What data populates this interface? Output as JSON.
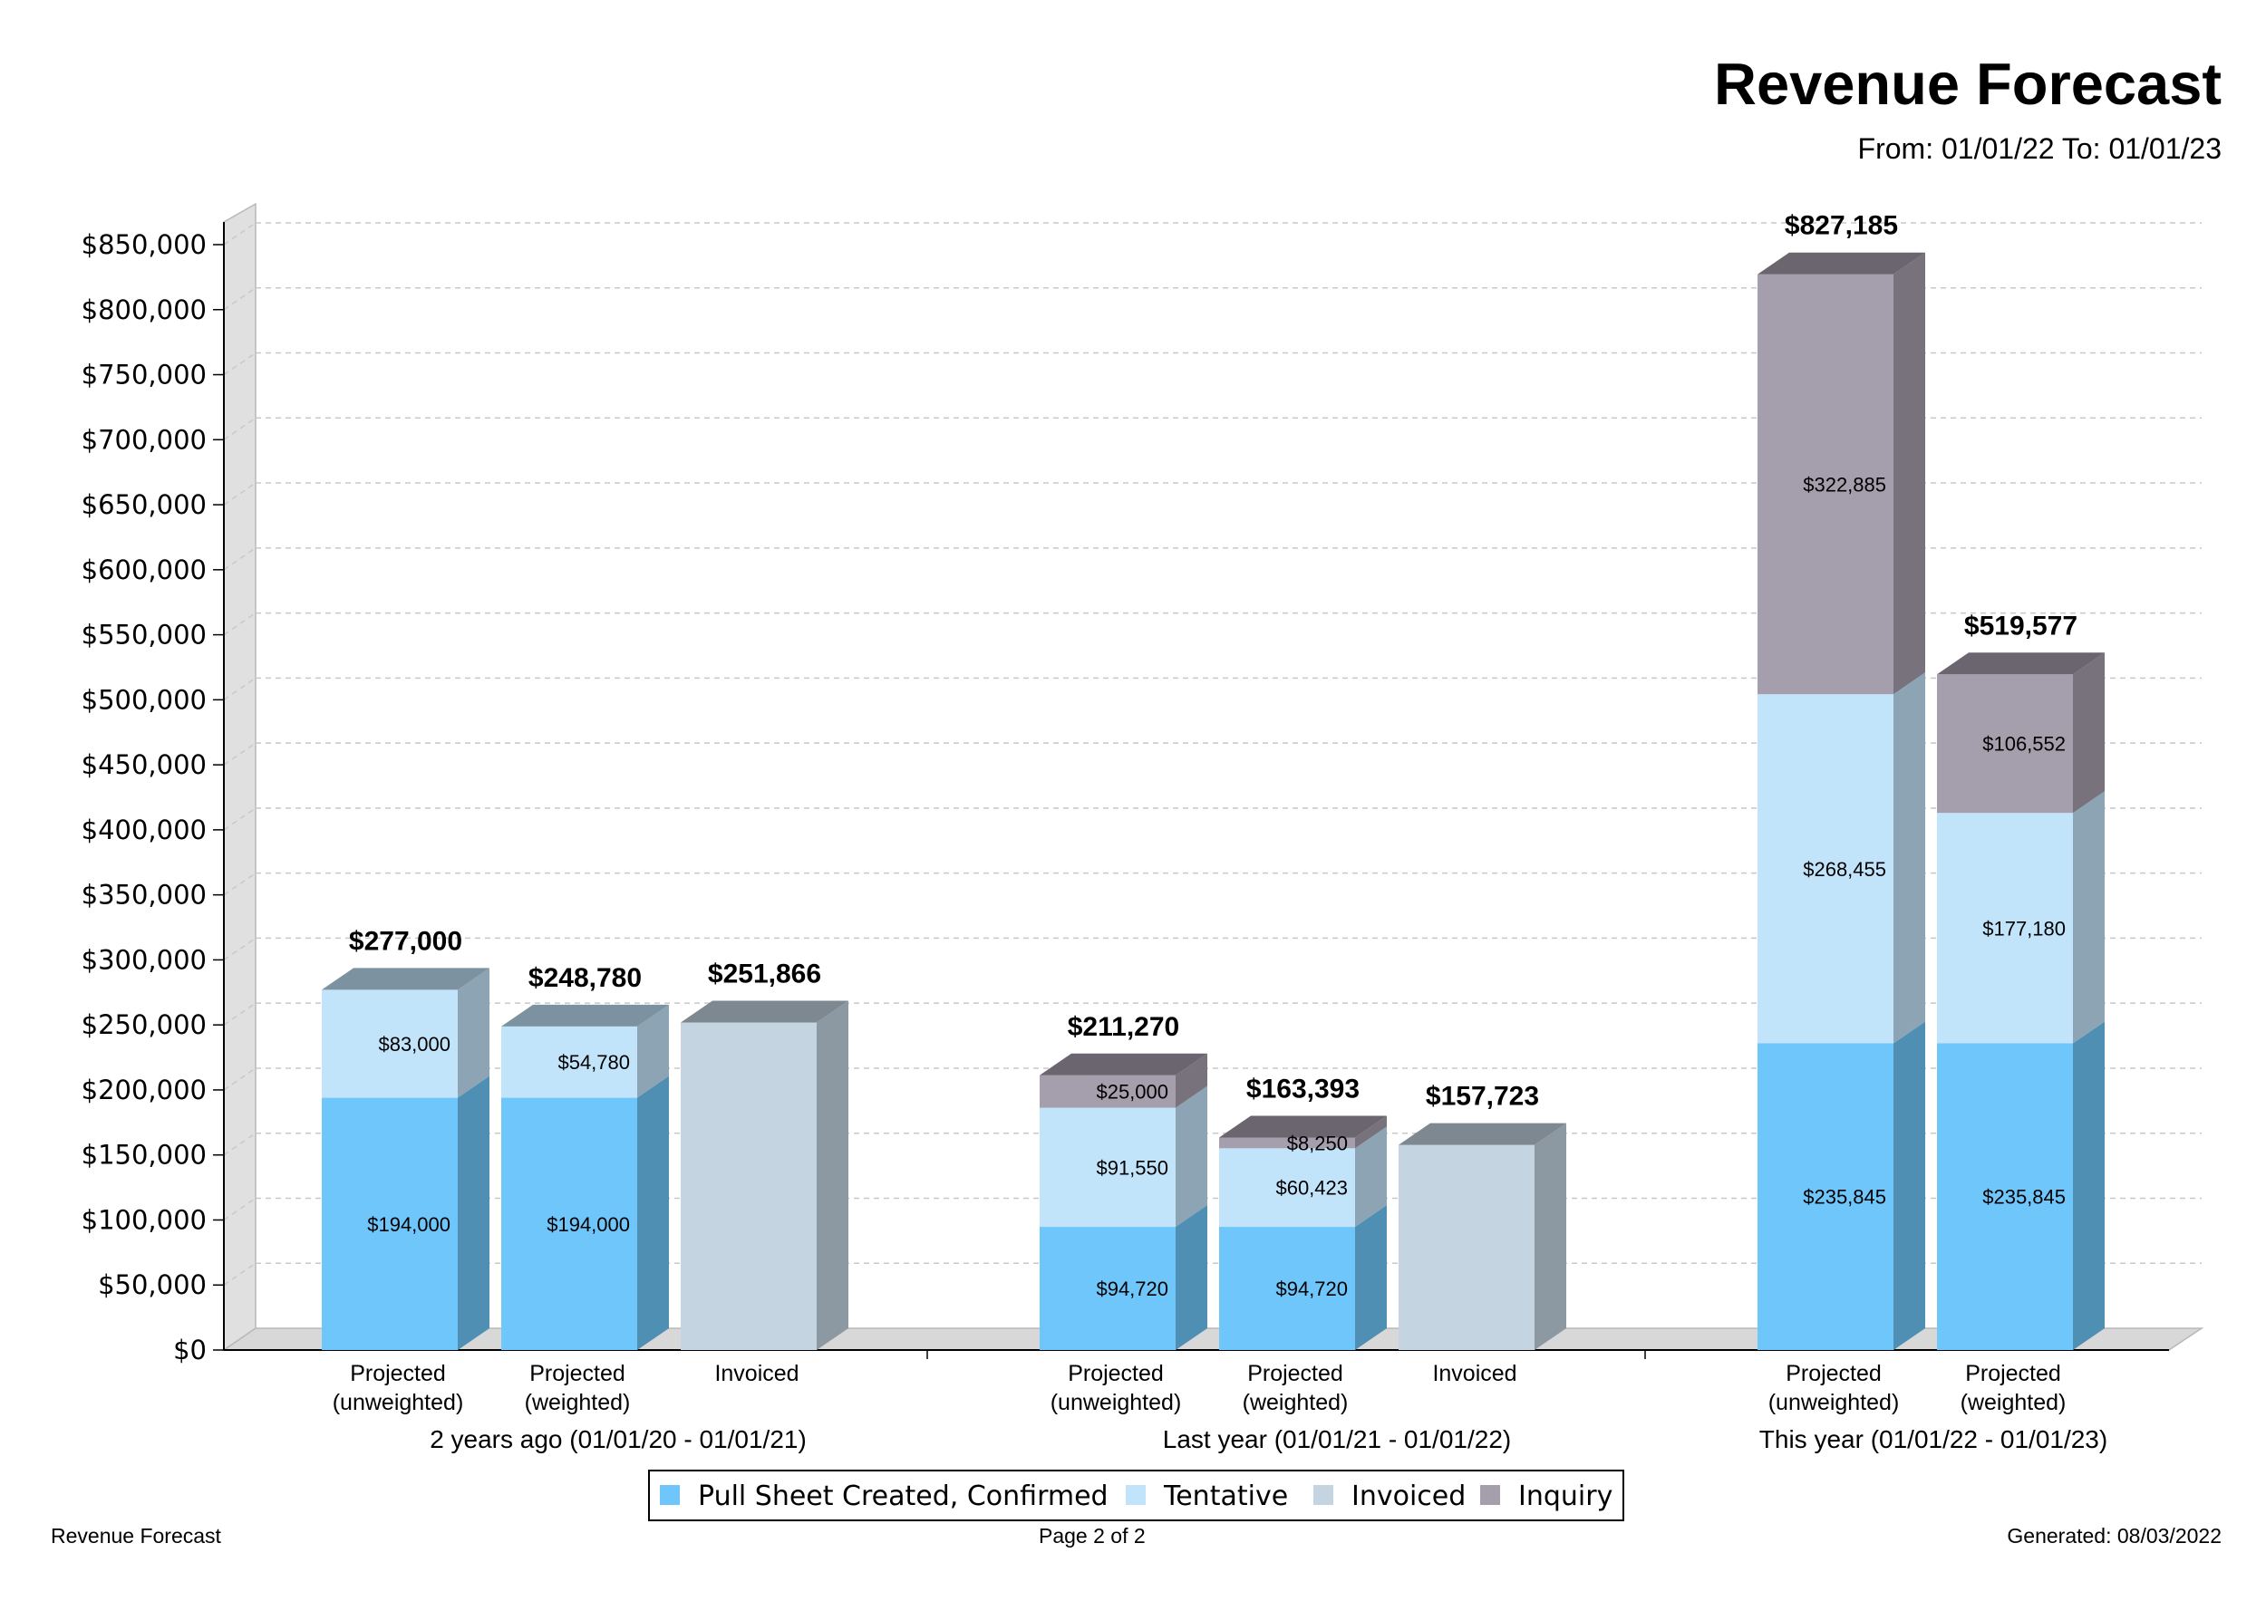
{
  "header": {
    "title": "Revenue Forecast",
    "date_range": "From: 01/01/22  To: 01/01/23"
  },
  "footer": {
    "left": "Revenue Forecast",
    "center": "Page 2 of 2",
    "right": "Generated: 08/03/2022"
  },
  "colors": {
    "Pull Sheet Created, Confirmed": "#6ec6fa",
    "Tentative": "#c2e4fa",
    "Invoiced": "#c4d5e1",
    "Inquiry": "#a59eac"
  },
  "chart_data": {
    "type": "bar",
    "stacked": true,
    "three_d": true,
    "ylim": [
      0,
      850000
    ],
    "y_ticks": [
      "$0",
      "$50,000",
      "$100,000",
      "$150,000",
      "$200,000",
      "$250,000",
      "$300,000",
      "$350,000",
      "$400,000",
      "$450,000",
      "$500,000",
      "$550,000",
      "$600,000",
      "$650,000",
      "$700,000",
      "$750,000",
      "$800,000",
      "$850,000"
    ],
    "y_tick_values": [
      0,
      50000,
      100000,
      150000,
      200000,
      250000,
      300000,
      350000,
      400000,
      450000,
      500000,
      550000,
      600000,
      650000,
      700000,
      750000,
      800000,
      850000
    ],
    "grid": true,
    "legend": {
      "position": "bottom",
      "entries": [
        "Pull Sheet Created, Confirmed",
        "Tentative",
        "Invoiced",
        "Inquiry"
      ]
    },
    "groups": [
      {
        "label": "2 years ago (01/01/20 - 01/01/21)",
        "bars": [
          {
            "label": [
              "Projected",
              "(unweighted)"
            ],
            "total_label": "$277,000",
            "segments": [
              {
                "series": "Pull Sheet Created, Confirmed",
                "value": 194000,
                "label": "$194,000"
              },
              {
                "series": "Tentative",
                "value": 83000,
                "label": "$83,000"
              }
            ]
          },
          {
            "label": [
              "Projected",
              "(weighted)"
            ],
            "total_label": "$248,780",
            "segments": [
              {
                "series": "Pull Sheet Created, Confirmed",
                "value": 194000,
                "label": "$194,000"
              },
              {
                "series": "Tentative",
                "value": 54780,
                "label": "$54,780"
              }
            ]
          },
          {
            "label": [
              "Invoiced"
            ],
            "total_label": "$251,866",
            "segments": [
              {
                "series": "Invoiced",
                "value": 251866,
                "label": ""
              }
            ]
          }
        ]
      },
      {
        "label": "Last year (01/01/21 - 01/01/22)",
        "bars": [
          {
            "label": [
              "Projected",
              "(unweighted)"
            ],
            "total_label": "$211,270",
            "segments": [
              {
                "series": "Pull Sheet Created, Confirmed",
                "value": 94720,
                "label": "$94,720"
              },
              {
                "series": "Tentative",
                "value": 91550,
                "label": "$91,550"
              },
              {
                "series": "Inquiry",
                "value": 25000,
                "label": "$25,000"
              }
            ]
          },
          {
            "label": [
              "Projected",
              "(weighted)"
            ],
            "total_label": "$163,393",
            "segments": [
              {
                "series": "Pull Sheet Created, Confirmed",
                "value": 94720,
                "label": "$94,720"
              },
              {
                "series": "Tentative",
                "value": 60423,
                "label": "$60,423"
              },
              {
                "series": "Inquiry",
                "value": 8250,
                "label": "$8,250"
              }
            ]
          },
          {
            "label": [
              "Invoiced"
            ],
            "total_label": "$157,723",
            "segments": [
              {
                "series": "Invoiced",
                "value": 157723,
                "label": ""
              }
            ]
          }
        ]
      },
      {
        "label": "This year (01/01/22 - 01/01/23)",
        "bars": [
          {
            "label": [
              "Projected",
              "(unweighted)"
            ],
            "total_label": "$827,185",
            "segments": [
              {
                "series": "Pull Sheet Created, Confirmed",
                "value": 235845,
                "label": "$235,845"
              },
              {
                "series": "Tentative",
                "value": 268455,
                "label": "$268,455"
              },
              {
                "series": "Inquiry",
                "value": 322885,
                "label": "$322,885"
              }
            ]
          },
          {
            "label": [
              "Projected",
              "(weighted)"
            ],
            "total_label": "$519,577",
            "segments": [
              {
                "series": "Pull Sheet Created, Confirmed",
                "value": 235845,
                "label": "$235,845"
              },
              {
                "series": "Tentative",
                "value": 177180,
                "label": "$177,180"
              },
              {
                "series": "Inquiry",
                "value": 106552,
                "label": "$106,552"
              }
            ]
          }
        ]
      }
    ]
  }
}
